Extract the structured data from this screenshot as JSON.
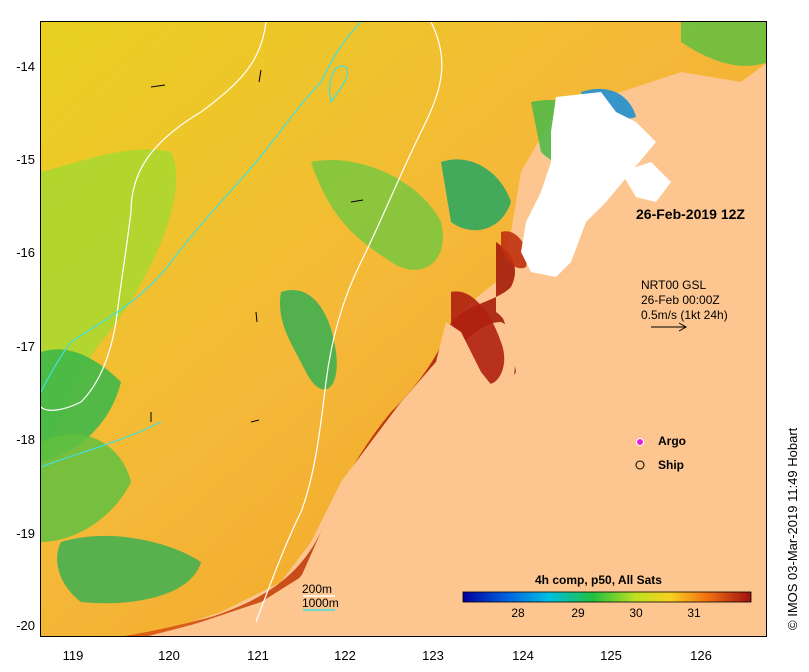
{
  "axes": {
    "x_ticks": [
      "119",
      "120",
      "121",
      "122",
      "123",
      "124",
      "125",
      "126"
    ],
    "y_ticks": [
      "-14",
      "-15",
      "-16",
      "-17",
      "-18",
      "-19",
      "-20"
    ]
  },
  "annotations": {
    "timestamp": "26-Feb-2019 12Z",
    "current_source": "NRT00 GSL",
    "current_date": "26-Feb 00:00Z",
    "current_scale": "0.5m/s (1kt 24h)"
  },
  "legend": {
    "argo_label": "Argo",
    "ship_label": "Ship",
    "argo_color": "#e020e0",
    "isobath_200": "200m",
    "isobath_1000": "1000m",
    "isobath_200_color": "#ffffff",
    "isobath_1000_color": "#40e0e0"
  },
  "colorbar": {
    "title": "4h comp, p50, All Sats",
    "ticks": [
      "28",
      "29",
      "30",
      "31"
    ]
  },
  "credit": "IMOS 03-Mar-2019 11:49 Hobart",
  "colors": {
    "land": "#fdc690",
    "cloud": "#ffffff"
  }
}
